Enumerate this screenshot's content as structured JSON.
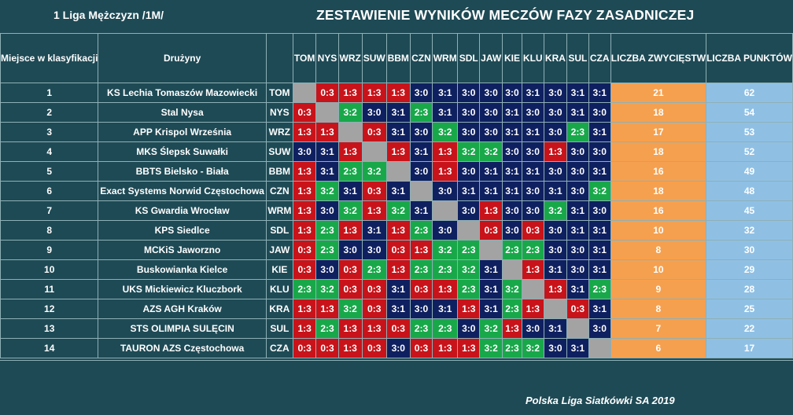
{
  "header": {
    "league": "1 Liga Mężczyzn /1M/",
    "title": "ZESTAWIENIE WYNIKÓW MECZÓW FAZY ZASADNICZEJ"
  },
  "table_header": {
    "place": "Miejsce w klasyfikacji",
    "team": "Drużyny",
    "wins": "LICZBA ZWYCIĘSTW",
    "points": "LICZBA PUNKTÓW",
    "codes": [
      "TOM",
      "NYS",
      "WRZ",
      "SUW",
      "BBM",
      "CZN",
      "WRM",
      "SDL",
      "JAW",
      "KIE",
      "KLU",
      "KRA",
      "SUL",
      "CZA"
    ]
  },
  "rows": [
    {
      "place": "1",
      "team": "KS Lechia Tomaszów Mazowiecki",
      "code": "TOM",
      "results": [
        "",
        "0:3",
        "1:3",
        "1:3",
        "1:3",
        "3:0",
        "3:1",
        "3:0",
        "3:0",
        "3:0",
        "3:1",
        "3:0",
        "3:1",
        "3:1"
      ],
      "wins": "21",
      "points": "62"
    },
    {
      "place": "2",
      "team": "Stal Nysa",
      "code": "NYS",
      "results": [
        "0:3",
        "",
        "3:2",
        "3:0",
        "3:1",
        "2:3",
        "3:1",
        "3:0",
        "3:0",
        "3:1",
        "3:0",
        "3:0",
        "3:1",
        "3:0"
      ],
      "wins": "18",
      "points": "54"
    },
    {
      "place": "3",
      "team": "APP Krispol Września",
      "code": "WRZ",
      "results": [
        "1:3",
        "1:3",
        "",
        "0:3",
        "3:1",
        "3:0",
        "3:2",
        "3:0",
        "3:0",
        "3:1",
        "3:1",
        "3:0",
        "2:3",
        "3:1"
      ],
      "wins": "17",
      "points": "53"
    },
    {
      "place": "4",
      "team": "MKS Ślepsk Suwałki",
      "code": "SUW",
      "results": [
        "3:0",
        "3:1",
        "1:3",
        "",
        "1:3",
        "3:1",
        "1:3",
        "3:2",
        "3:2",
        "3:0",
        "3:0",
        "1:3",
        "3:0",
        "3:0"
      ],
      "wins": "18",
      "points": "52"
    },
    {
      "place": "5",
      "team": "BBTS Bielsko - Biała",
      "code": "BBM",
      "results": [
        "1:3",
        "3:1",
        "2:3",
        "3:2",
        "",
        "3:0",
        "1:3",
        "3:0",
        "3:1",
        "3:1",
        "3:1",
        "3:0",
        "3:0",
        "3:1"
      ],
      "wins": "16",
      "points": "49"
    },
    {
      "place": "6",
      "team": "Exact Systems Norwid Częstochowa",
      "code": "CZN",
      "results": [
        "1:3",
        "3:2",
        "3:1",
        "0:3",
        "3:1",
        "",
        "3:0",
        "3:1",
        "3:1",
        "3:1",
        "3:0",
        "3:1",
        "3:0",
        "3:2"
      ],
      "wins": "18",
      "points": "48"
    },
    {
      "place": "7",
      "team": "KS Gwardia Wrocław",
      "code": "WRM",
      "results": [
        "1:3",
        "3:0",
        "3:2",
        "1:3",
        "3:2",
        "3:1",
        "",
        "3:0",
        "1:3",
        "3:0",
        "3:0",
        "3:2",
        "3:1",
        "3:0"
      ],
      "wins": "16",
      "points": "45"
    },
    {
      "place": "8",
      "team": "KPS Siedlce",
      "code": "SDL",
      "results": [
        "1:3",
        "2:3",
        "1:3",
        "3:1",
        "1:3",
        "2:3",
        "3:0",
        "",
        "0:3",
        "3:0",
        "0:3",
        "3:0",
        "3:1",
        "3:1"
      ],
      "wins": "10",
      "points": "32"
    },
    {
      "place": "9",
      "team": "MCKiS Jaworzno",
      "code": "JAW",
      "results": [
        "0:3",
        "2:3",
        "3:0",
        "3:0",
        "0:3",
        "1:3",
        "3:2",
        "2:3",
        "",
        "2:3",
        "2:3",
        "3:0",
        "3:0",
        "3:1"
      ],
      "wins": "8",
      "points": "30"
    },
    {
      "place": "10",
      "team": "Buskowianka Kielce",
      "code": "KIE",
      "results": [
        "0:3",
        "3:0",
        "0:3",
        "2:3",
        "1:3",
        "2:3",
        "2:3",
        "3:2",
        "3:1",
        "",
        "1:3",
        "3:1",
        "3:0",
        "3:1"
      ],
      "wins": "10",
      "points": "29"
    },
    {
      "place": "11",
      "team": "UKS Mickiewicz Kluczbork",
      "code": "KLU",
      "results": [
        "2:3",
        "3:2",
        "0:3",
        "0:3",
        "3:1",
        "0:3",
        "1:3",
        "2:3",
        "3:1",
        "3:2",
        "",
        "1:3",
        "3:1",
        "2:3"
      ],
      "wins": "9",
      "points": "28"
    },
    {
      "place": "12",
      "team": "AZS AGH Kraków",
      "code": "KRA",
      "results": [
        "1:3",
        "1:3",
        "3:2",
        "0:3",
        "3:1",
        "3:0",
        "3:1",
        "1:3",
        "3:1",
        "2:3",
        "1:3",
        "",
        "0:3",
        "3:1"
      ],
      "wins": "8",
      "points": "25"
    },
    {
      "place": "13",
      "team": "STS OLIMPIA SULĘCIN",
      "code": "SUL",
      "results": [
        "1:3",
        "2:3",
        "1:3",
        "1:3",
        "0:3",
        "2:3",
        "2:3",
        "3:0",
        "3:2",
        "1:3",
        "3:0",
        "3:1",
        "",
        "3:0"
      ],
      "wins": "7",
      "points": "22"
    },
    {
      "place": "14",
      "team": "TAURON AZS Częstochowa",
      "code": "CZA",
      "results": [
        "0:3",
        "0:3",
        "1:3",
        "0:3",
        "3:0",
        "0:3",
        "1:3",
        "1:3",
        "3:2",
        "2:3",
        "3:2",
        "3:0",
        "3:1",
        ""
      ],
      "wins": "6",
      "points": "17"
    }
  ],
  "footer": "Polska Liga Siatkówki SA 2019",
  "colors": {
    "background": "#1e4a55",
    "win_3_0_3_1": "#0f2060",
    "win_3_2": "#18a84a",
    "loss_2_3": "#18a84a",
    "loss_0_3_1_3": "#c8131a",
    "self_match": "#a3a3a3",
    "wins_column": "#f5a04f",
    "points_column": "#8fc0e4"
  }
}
